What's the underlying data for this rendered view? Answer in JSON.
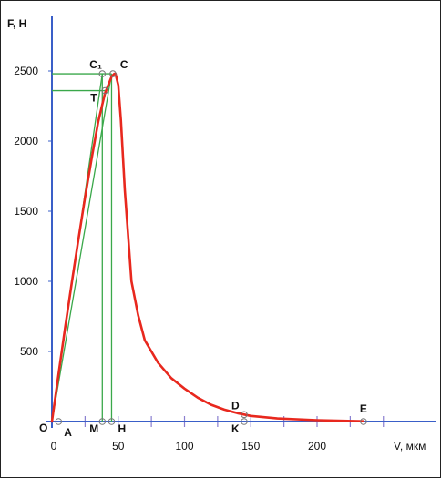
{
  "chart_data": {
    "type": "line",
    "ylabel": "F, Н",
    "xlabel": "V, мкм",
    "xlim": [
      0,
      250
    ],
    "ylim": [
      0,
      2500
    ],
    "x_ticks": [
      0,
      50,
      100,
      150,
      200
    ],
    "y_ticks": [
      500,
      1000,
      1500,
      2000,
      2500
    ],
    "origin_label": "O",
    "series": [
      {
        "color": "#e8281e",
        "x": [
          0,
          5,
          10,
          15,
          20,
          25,
          30,
          35,
          40,
          45,
          47,
          48,
          50,
          52,
          55,
          60,
          65,
          70,
          80,
          90,
          100,
          110,
          120,
          130,
          140,
          145,
          150,
          170,
          200,
          235
        ],
        "y": [
          0,
          340,
          670,
          990,
          1300,
          1600,
          1880,
          2140,
          2340,
          2460,
          2480,
          2480,
          2400,
          2150,
          1650,
          1000,
          760,
          580,
          420,
          310,
          235,
          170,
          120,
          85,
          60,
          50,
          40,
          22,
          10,
          2
        ]
      }
    ],
    "construction_lines": {
      "color": "#3aa84a",
      "oblique": [
        {
          "from": [
            0,
            0
          ],
          "to": [
            38,
            2480
          ]
        },
        {
          "from": [
            0,
            0
          ],
          "to": [
            45,
            2480
          ]
        }
      ],
      "horizontal": [
        {
          "y": 2480,
          "x_to": 45
        },
        {
          "y": 2360,
          "x_to": 40
        }
      ],
      "vertical": [
        {
          "x": 38,
          "y_to": 2480
        },
        {
          "x": 45,
          "y_to": 2480
        }
      ]
    },
    "points": [
      {
        "label": "A",
        "x": 5,
        "y": 0
      },
      {
        "label": "M",
        "x": 38,
        "y": 0
      },
      {
        "label": "H",
        "x": 45,
        "y": 0
      },
      {
        "label": "C₁",
        "x": 38,
        "y": 2480
      },
      {
        "label": "C",
        "x": 46,
        "y": 2480
      },
      {
        "label": "T",
        "x": 40,
        "y": 2360
      },
      {
        "label": "D",
        "x": 145,
        "y": 50
      },
      {
        "label": "K",
        "x": 145,
        "y": 0
      },
      {
        "label": "E",
        "x": 235,
        "y": 0
      }
    ]
  }
}
